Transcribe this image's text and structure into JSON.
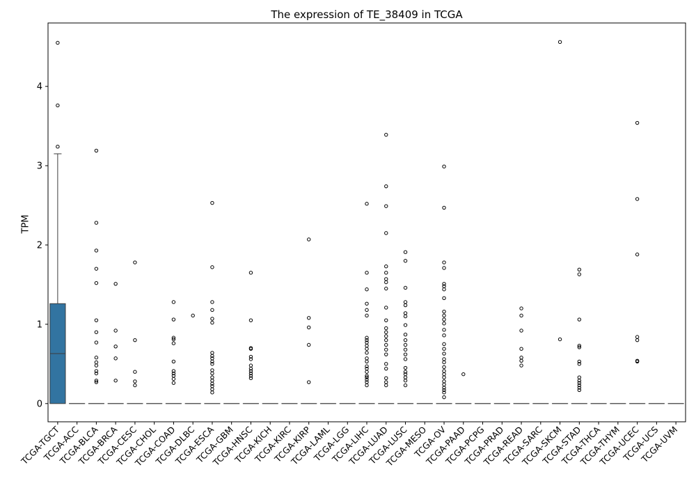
{
  "chart_data": {
    "type": "boxplot",
    "title": "The expression of TE_38409 in TCGA",
    "xlabel": "",
    "ylabel": "TPM",
    "ylim": [
      -0.23,
      4.8
    ],
    "yticks": [
      0,
      1,
      2,
      3,
      4
    ],
    "grid": false,
    "legend": "none",
    "box_color": "#3274a1",
    "categories": [
      "TCGA-TGCT",
      "TCGA-ACC",
      "TCGA-BLCA",
      "TCGA-BRCA",
      "TCGA-CESC",
      "TCGA-CHOL",
      "TCGA-COAD",
      "TCGA-DLBC",
      "TCGA-ESCA",
      "TCGA-GBM",
      "TCGA-HNSC",
      "TCGA-KICH",
      "TCGA-KIRC",
      "TCGA-KIRP",
      "TCGA-LAML",
      "TCGA-LGG",
      "TCGA-LIHC",
      "TCGA-LUAD",
      "TCGA-LUSC",
      "TCGA-MESO",
      "TCGA-OV",
      "TCGA-PAAD",
      "TCGA-PCPG",
      "TCGA-PRAD",
      "TCGA-READ",
      "TCGA-SARC",
      "TCGA-SKCM",
      "TCGA-STAD",
      "TCGA-THCA",
      "TCGA-THYM",
      "TCGA-UCEC",
      "TCGA-UCS",
      "TCGA-UVM"
    ],
    "boxes": [
      {
        "q1": 0,
        "median": 0.63,
        "q3": 1.26,
        "whisker_low": 0,
        "whisker_high": 3.15,
        "outliers": [
          3.24,
          3.76,
          4.55
        ]
      },
      {
        "q1": 0,
        "median": 0,
        "q3": 0,
        "whisker_low": 0,
        "whisker_high": 0,
        "outliers": []
      },
      {
        "q1": 0,
        "median": 0,
        "q3": 0,
        "whisker_low": 0,
        "whisker_high": 0,
        "outliers": [
          0.27,
          0.29,
          0.38,
          0.41,
          0.48,
          0.52,
          0.58,
          0.77,
          0.9,
          1.05,
          1.52,
          1.7,
          1.93,
          2.28,
          3.19
        ]
      },
      {
        "q1": 0,
        "median": 0,
        "q3": 0,
        "whisker_low": 0,
        "whisker_high": 0,
        "outliers": [
          0.29,
          0.57,
          0.72,
          0.92,
          1.51
        ]
      },
      {
        "q1": 0,
        "median": 0,
        "q3": 0,
        "whisker_low": 0,
        "whisker_high": 0,
        "outliers": [
          0.23,
          0.28,
          0.4,
          0.8,
          1.78
        ]
      },
      {
        "q1": 0,
        "median": 0,
        "q3": 0,
        "whisker_low": 0,
        "whisker_high": 0,
        "outliers": []
      },
      {
        "q1": 0,
        "median": 0,
        "q3": 0,
        "whisker_low": 0,
        "whisker_high": 0,
        "outliers": [
          0.26,
          0.31,
          0.35,
          0.38,
          0.41,
          0.53,
          0.76,
          0.81,
          0.83,
          1.06,
          1.28
        ]
      },
      {
        "q1": 0,
        "median": 0,
        "q3": 0,
        "whisker_low": 0,
        "whisker_high": 0,
        "outliers": [
          1.11
        ]
      },
      {
        "q1": 0,
        "median": 0,
        "q3": 0,
        "whisker_low": 0,
        "whisker_high": 0,
        "outliers": [
          0.14,
          0.18,
          0.22,
          0.25,
          0.29,
          0.33,
          0.38,
          0.42,
          0.5,
          0.53,
          0.57,
          0.6,
          0.64,
          1.02,
          1.07,
          1.18,
          1.28,
          1.72,
          2.53
        ]
      },
      {
        "q1": 0,
        "median": 0,
        "q3": 0,
        "whisker_low": 0,
        "whisker_high": 0,
        "outliers": []
      },
      {
        "q1": 0,
        "median": 0,
        "q3": 0,
        "whisker_low": 0,
        "whisker_high": 0,
        "outliers": [
          0.32,
          0.35,
          0.38,
          0.41,
          0.44,
          0.48,
          0.56,
          0.59,
          0.69,
          0.7,
          1.05,
          1.65
        ]
      },
      {
        "q1": 0,
        "median": 0,
        "q3": 0,
        "whisker_low": 0,
        "whisker_high": 0,
        "outliers": []
      },
      {
        "q1": 0,
        "median": 0,
        "q3": 0,
        "whisker_low": 0,
        "whisker_high": 0,
        "outliers": []
      },
      {
        "q1": 0,
        "median": 0,
        "q3": 0,
        "whisker_low": 0,
        "whisker_high": 0,
        "outliers": [
          0.27,
          0.74,
          0.96,
          1.08,
          2.07
        ]
      },
      {
        "q1": 0,
        "median": 0,
        "q3": 0,
        "whisker_low": 0,
        "whisker_high": 0,
        "outliers": []
      },
      {
        "q1": 0,
        "median": 0,
        "q3": 0,
        "whisker_low": 0,
        "whisker_high": 0,
        "outliers": []
      },
      {
        "q1": 0,
        "median": 0,
        "q3": 0,
        "whisker_low": 0,
        "whisker_high": 0,
        "outliers": [
          0.23,
          0.27,
          0.3,
          0.33,
          0.35,
          0.4,
          0.44,
          0.47,
          0.53,
          0.57,
          0.64,
          0.69,
          0.73,
          0.77,
          0.8,
          0.83,
          1.11,
          1.18,
          1.26,
          1.44,
          1.65,
          2.52
        ]
      },
      {
        "q1": 0,
        "median": 0,
        "q3": 0,
        "whisker_low": 0,
        "whisker_high": 0,
        "outliers": [
          0.23,
          0.27,
          0.32,
          0.44,
          0.5,
          0.62,
          0.68,
          0.74,
          0.8,
          0.85,
          0.9,
          0.95,
          1.05,
          1.21,
          1.45,
          1.53,
          1.57,
          1.65,
          1.73,
          2.15,
          2.49,
          2.74,
          3.39
        ]
      },
      {
        "q1": 0,
        "median": 0,
        "q3": 0,
        "whisker_low": 0,
        "whisker_high": 0,
        "outliers": [
          0.23,
          0.29,
          0.33,
          0.37,
          0.4,
          0.45,
          0.56,
          0.62,
          0.68,
          0.74,
          0.8,
          0.87,
          0.99,
          1.1,
          1.14,
          1.24,
          1.28,
          1.46,
          1.8,
          1.91
        ]
      },
      {
        "q1": 0,
        "median": 0,
        "q3": 0,
        "whisker_low": 0,
        "whisker_high": 0,
        "outliers": []
      },
      {
        "q1": 0,
        "median": 0,
        "q3": 0,
        "whisker_low": 0,
        "whisker_high": 0,
        "outliers": [
          0.08,
          0.14,
          0.17,
          0.2,
          0.24,
          0.28,
          0.33,
          0.37,
          0.41,
          0.46,
          0.52,
          0.56,
          0.63,
          0.69,
          0.75,
          0.86,
          0.93,
          1.01,
          1.06,
          1.11,
          1.16,
          1.33,
          1.44,
          1.48,
          1.51,
          1.71,
          1.78,
          2.47,
          2.99
        ]
      },
      {
        "q1": 0,
        "median": 0,
        "q3": 0,
        "whisker_low": 0,
        "whisker_high": 0,
        "outliers": [
          0.37
        ]
      },
      {
        "q1": 0,
        "median": 0,
        "q3": 0,
        "whisker_low": 0,
        "whisker_high": 0,
        "outliers": []
      },
      {
        "q1": 0,
        "median": 0,
        "q3": 0,
        "whisker_low": 0,
        "whisker_high": 0,
        "outliers": []
      },
      {
        "q1": 0,
        "median": 0,
        "q3": 0,
        "whisker_low": 0,
        "whisker_high": 0,
        "outliers": [
          0.48,
          0.54,
          0.58,
          0.69,
          0.92,
          1.11,
          1.2
        ]
      },
      {
        "q1": 0,
        "median": 0,
        "q3": 0,
        "whisker_low": 0,
        "whisker_high": 0,
        "outliers": []
      },
      {
        "q1": 0,
        "median": 0,
        "q3": 0,
        "whisker_low": 0,
        "whisker_high": 0,
        "outliers": [
          0.81,
          4.56
        ]
      },
      {
        "q1": 0,
        "median": 0,
        "q3": 0,
        "whisker_low": 0,
        "whisker_high": 0,
        "outliers": [
          0.17,
          0.2,
          0.23,
          0.26,
          0.29,
          0.33,
          0.5,
          0.53,
          0.71,
          0.73,
          1.06,
          1.63,
          1.69
        ]
      },
      {
        "q1": 0,
        "median": 0,
        "q3": 0,
        "whisker_low": 0,
        "whisker_high": 0,
        "outliers": []
      },
      {
        "q1": 0,
        "median": 0,
        "q3": 0,
        "whisker_low": 0,
        "whisker_high": 0,
        "outliers": []
      },
      {
        "q1": 0,
        "median": 0,
        "q3": 0,
        "whisker_low": 0,
        "whisker_high": 0,
        "outliers": [
          0.53,
          0.54,
          0.8,
          0.84,
          1.88,
          2.58,
          3.54
        ]
      },
      {
        "q1": 0,
        "median": 0,
        "q3": 0,
        "whisker_low": 0,
        "whisker_high": 0,
        "outliers": []
      },
      {
        "q1": 0,
        "median": 0,
        "q3": 0,
        "whisker_low": 0,
        "whisker_high": 0,
        "outliers": []
      }
    ]
  }
}
